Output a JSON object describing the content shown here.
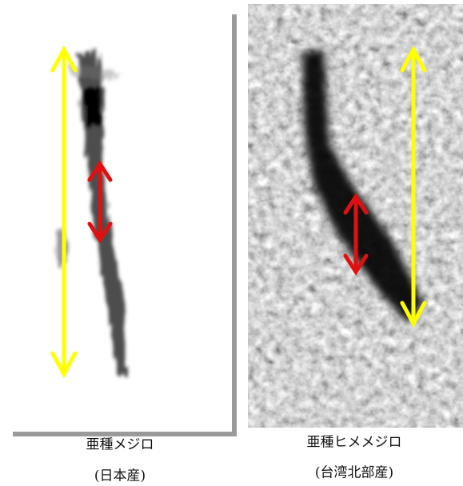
{
  "panels": [
    {
      "caption": "亜種メジロ",
      "origin": "(日本産)"
    },
    {
      "caption": "亜種ヒメメジロ",
      "origin": "(台湾北部産)"
    }
  ]
}
